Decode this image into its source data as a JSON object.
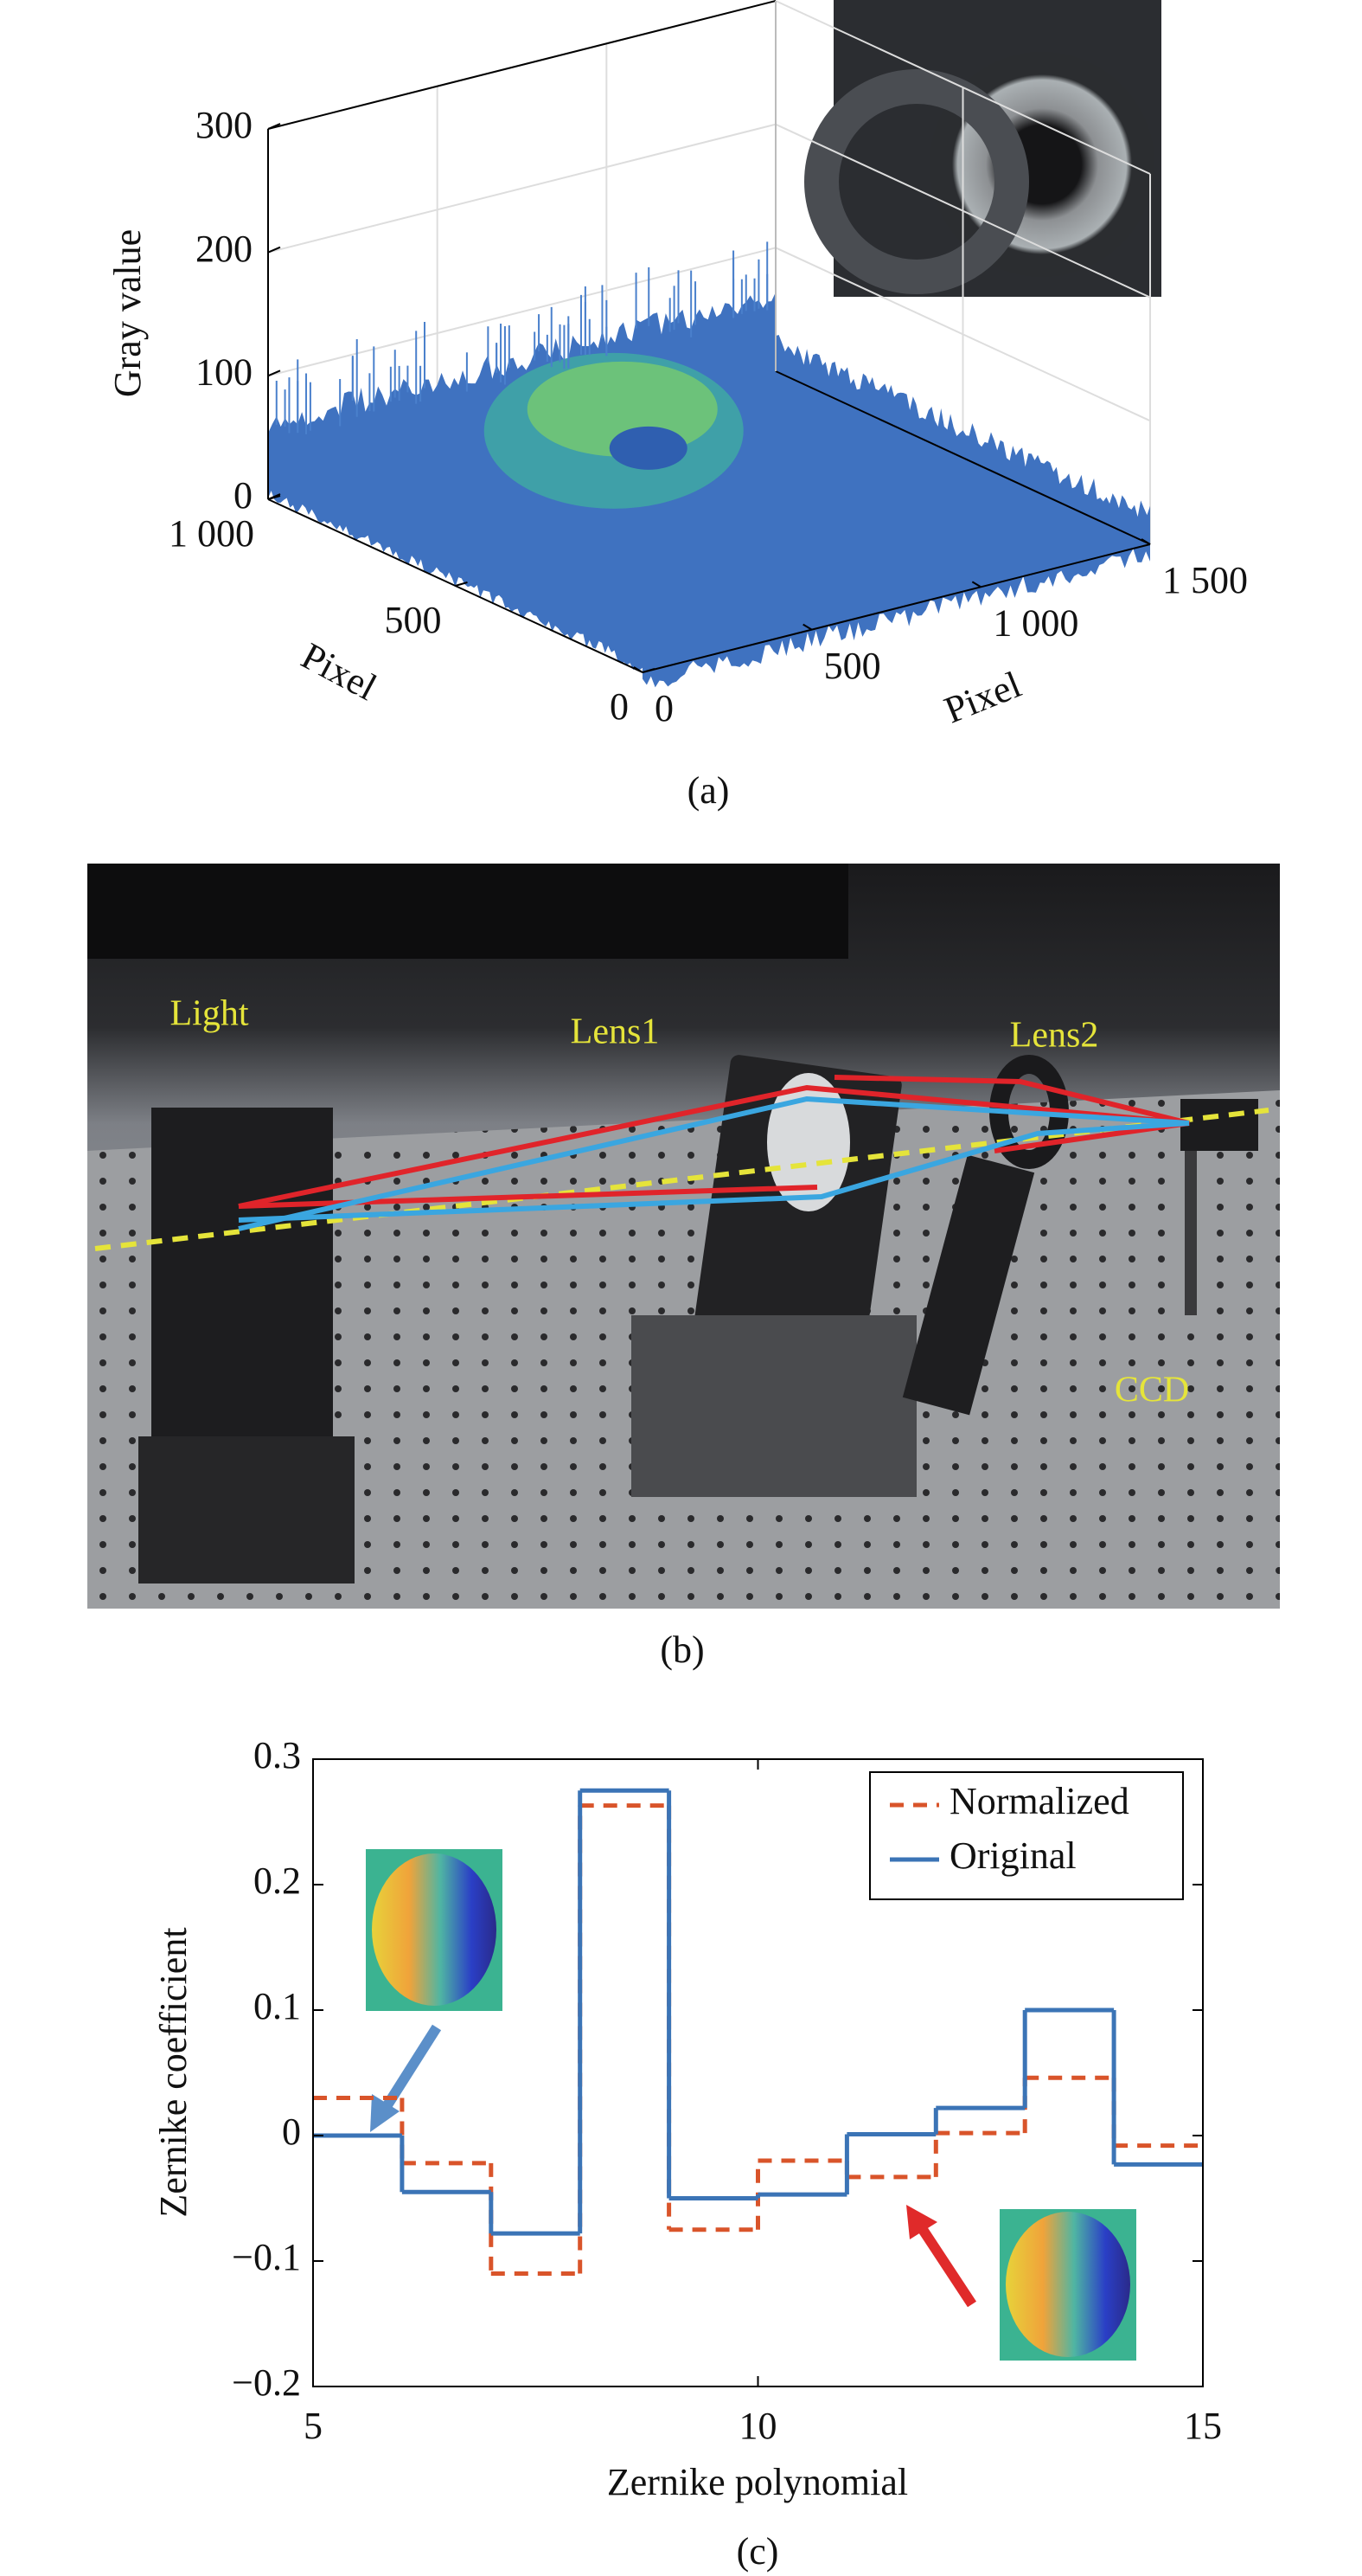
{
  "chart_data": [
    {
      "type": "surface3d",
      "zlabel": "Gray value",
      "xlabel": "Pixel",
      "ylabel": "Pixel",
      "zlim": [
        0,
        300
      ],
      "zticks": [
        0,
        100,
        200,
        300
      ],
      "xlim": [
        0,
        1500
      ],
      "xticks": [
        0,
        500,
        {
          "value": 1000,
          "label": "1 000"
        },
        {
          "value": 1500,
          "label": "1 500"
        }
      ],
      "ylim": [
        0,
        1000
      ],
      "yticks": [
        0,
        500,
        {
          "value": 1000,
          "label": "1 000"
        }
      ],
      "caption": "(a)"
    },
    {
      "type": "step",
      "xlabel": "Zernike polynomial",
      "ylabel": "Zernike coefficient",
      "x": [
        5,
        6,
        7,
        8,
        9,
        10,
        11,
        12,
        13,
        14
      ],
      "series": [
        {
          "name": "Normalized",
          "color": "#d9542a",
          "dashed": true,
          "values": [
            0.03,
            -0.022,
            -0.11,
            0.263,
            -0.075,
            -0.02,
            -0.033,
            0.002,
            0.046,
            -0.008
          ]
        },
        {
          "name": "Original",
          "color": "#3b74b6",
          "dashed": false,
          "values": [
            0,
            -0.045,
            -0.078,
            0.275,
            -0.05,
            -0.047,
            0.001,
            0.022,
            0.1,
            -0.023
          ]
        }
      ],
      "xlim": [
        5,
        15
      ],
      "xticks": [
        5,
        10,
        15
      ],
      "ylim": [
        -0.2,
        0.3
      ],
      "yticks": [
        {
          "value": -0.2,
          "label": "−0.2"
        },
        {
          "value": -0.1,
          "label": "−0.1"
        },
        0,
        0.1,
        0.2,
        0.3
      ],
      "legend": "upper right",
      "caption": "(c)"
    }
  ],
  "photo": {
    "labels": [
      "Light",
      "Lens1",
      "Lens2",
      "CCD"
    ],
    "caption": "(b)"
  }
}
